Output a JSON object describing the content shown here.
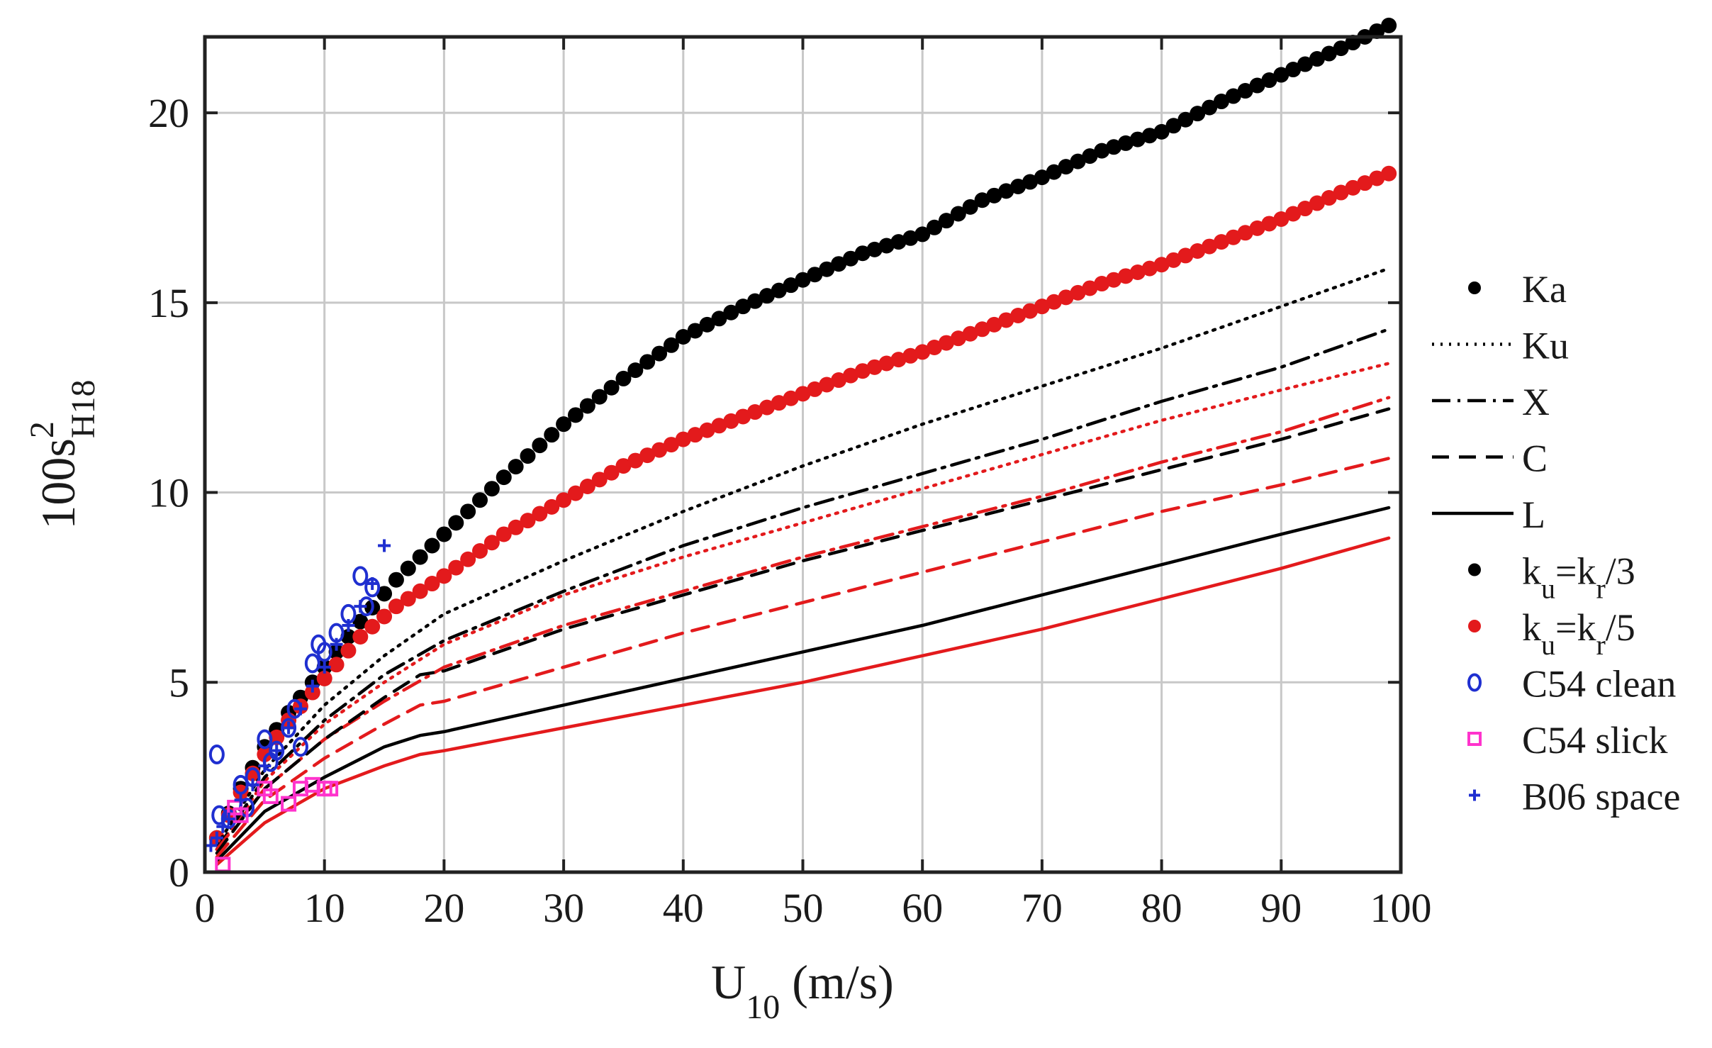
{
  "chart_data": {
    "type": "line",
    "xlabel": "U10 (m/s)",
    "xlabel_main": "U",
    "xlabel_sub": "10",
    "xlabel_unit": " (m/s)",
    "ylabel": "100s2H18",
    "ylabel_main": "100s",
    "ylabel_sup": "2",
    "ylabel_sub": "H18",
    "xlim": [
      0,
      100
    ],
    "ylim": [
      0,
      22
    ],
    "xticks": [
      0,
      10,
      20,
      30,
      40,
      50,
      60,
      70,
      80,
      90,
      100
    ],
    "yticks": [
      0,
      5,
      10,
      15,
      20
    ],
    "grid": true,
    "legend_position": "right-outside",
    "colors": {
      "ku_r3": "#000000",
      "ku_r5": "#e31a1c",
      "c54_clean": "#1f2fd0",
      "c54_slick": "#ff33cc",
      "b06": "#1f2fd0"
    },
    "legend": [
      {
        "label": "Ka",
        "style": "dots",
        "color": "#000000"
      },
      {
        "label": "Ku",
        "style": "dotted",
        "color": "#000000"
      },
      {
        "label": "X",
        "style": "dashdot",
        "color": "#000000"
      },
      {
        "label": "C",
        "style": "dashed",
        "color": "#000000"
      },
      {
        "label": "L",
        "style": "solid",
        "color": "#000000"
      },
      {
        "label": "ku=kr/3",
        "label_parts": [
          "k",
          "u",
          "=k",
          "r",
          "/3"
        ],
        "style": "marker-dot",
        "color": "#000000"
      },
      {
        "label": "ku=kr/5",
        "label_parts": [
          "k",
          "u",
          "=k",
          "r",
          "/5"
        ],
        "style": "marker-dot",
        "color": "#e31a1c"
      },
      {
        "label": "C54 clean",
        "style": "marker-diamond",
        "color": "#1f2fd0"
      },
      {
        "label": "C54 slick",
        "style": "marker-square",
        "color": "#ff33cc"
      },
      {
        "label": "B06 space",
        "style": "marker-plus",
        "color": "#1f2fd0"
      }
    ],
    "series": [
      {
        "name": "Ka, ku=kr/3",
        "band": "Ka",
        "color": "#000000",
        "style": "dots",
        "x": [
          1,
          3,
          5,
          7,
          10,
          13,
          16,
          20,
          25,
          30,
          35,
          40,
          45,
          50,
          55,
          60,
          65,
          70,
          75,
          80,
          85,
          90,
          95,
          99
        ],
        "y": [
          0.9,
          2.2,
          3.3,
          4.2,
          5.4,
          6.6,
          7.7,
          8.9,
          10.4,
          11.8,
          13.0,
          14.1,
          14.9,
          15.6,
          16.3,
          16.8,
          17.7,
          18.3,
          19.0,
          19.5,
          20.3,
          21.0,
          21.7,
          22.3
        ]
      },
      {
        "name": "Ka, ku=kr/5",
        "band": "Ka",
        "color": "#e31a1c",
        "style": "dots",
        "x": [
          1,
          3,
          5,
          7,
          10,
          13,
          16,
          20,
          25,
          30,
          35,
          40,
          45,
          50,
          55,
          60,
          65,
          70,
          75,
          80,
          85,
          90,
          95,
          99
        ],
        "y": [
          0.9,
          2.1,
          3.1,
          4.0,
          5.1,
          6.2,
          7.0,
          7.8,
          8.9,
          9.8,
          10.7,
          11.4,
          12.0,
          12.6,
          13.2,
          13.7,
          14.3,
          14.9,
          15.5,
          16.0,
          16.6,
          17.2,
          17.9,
          18.4
        ]
      },
      {
        "name": "Ku, ku=kr/3",
        "band": "Ku",
        "color": "#000000",
        "style": "dotted",
        "x": [
          1,
          5,
          10,
          15,
          20,
          30,
          40,
          50,
          60,
          70,
          80,
          90,
          99
        ],
        "y": [
          0.7,
          2.7,
          4.4,
          5.7,
          6.8,
          8.2,
          9.5,
          10.7,
          11.8,
          12.8,
          13.8,
          14.9,
          15.9
        ]
      },
      {
        "name": "Ku, ku=kr/5",
        "band": "Ku",
        "color": "#e31a1c",
        "style": "dotted",
        "x": [
          1,
          5,
          10,
          15,
          20,
          30,
          40,
          50,
          60,
          70,
          80,
          90,
          99
        ],
        "y": [
          0.6,
          2.4,
          3.9,
          5.0,
          6.0,
          7.3,
          8.3,
          9.2,
          10.1,
          11.0,
          11.9,
          12.7,
          13.4
        ]
      },
      {
        "name": "X, ku=kr/3",
        "band": "X",
        "color": "#000000",
        "style": "dashdot",
        "x": [
          1,
          5,
          10,
          15,
          20,
          30,
          40,
          50,
          60,
          70,
          80,
          90,
          99
        ],
        "y": [
          0.6,
          2.5,
          4.0,
          5.2,
          6.1,
          7.4,
          8.6,
          9.6,
          10.5,
          11.4,
          12.4,
          13.3,
          14.3
        ]
      },
      {
        "name": "X, ku=kr/5",
        "band": "X",
        "color": "#e31a1c",
        "style": "dashdot",
        "x": [
          1,
          5,
          10,
          15,
          20,
          30,
          40,
          50,
          60,
          70,
          80,
          90,
          99
        ],
        "y": [
          0.6,
          2.2,
          3.5,
          4.5,
          5.4,
          6.5,
          7.4,
          8.3,
          9.1,
          9.9,
          10.8,
          11.6,
          12.5
        ]
      },
      {
        "name": "C, ku=kr/3",
        "band": "C",
        "color": "#000000",
        "style": "dashed",
        "x": [
          1,
          5,
          10,
          15,
          18,
          20,
          30,
          40,
          50,
          60,
          70,
          80,
          90,
          99
        ],
        "y": [
          0.5,
          2.2,
          3.5,
          4.6,
          5.2,
          5.3,
          6.4,
          7.3,
          8.2,
          9.0,
          9.8,
          10.6,
          11.4,
          12.2
        ]
      },
      {
        "name": "C, ku=kr/5",
        "band": "C",
        "color": "#e31a1c",
        "style": "dashed",
        "x": [
          1,
          5,
          10,
          15,
          18,
          20,
          30,
          40,
          50,
          60,
          70,
          80,
          90,
          99
        ],
        "y": [
          0.4,
          1.9,
          3.0,
          3.9,
          4.4,
          4.5,
          5.4,
          6.3,
          7.1,
          7.9,
          8.7,
          9.5,
          10.2,
          10.9
        ]
      },
      {
        "name": "L, ku=kr/3",
        "band": "L",
        "color": "#000000",
        "style": "solid",
        "x": [
          1,
          5,
          10,
          15,
          18,
          20,
          30,
          40,
          50,
          60,
          70,
          80,
          90,
          99
        ],
        "y": [
          0.3,
          1.6,
          2.5,
          3.3,
          3.6,
          3.7,
          4.4,
          5.1,
          5.8,
          6.5,
          7.3,
          8.1,
          8.9,
          9.6
        ]
      },
      {
        "name": "L, ku=kr/5",
        "band": "L",
        "color": "#e31a1c",
        "style": "solid",
        "x": [
          1,
          5,
          10,
          15,
          18,
          20,
          30,
          40,
          50,
          60,
          70,
          80,
          90,
          99
        ],
        "y": [
          0.2,
          1.3,
          2.2,
          2.8,
          3.1,
          3.2,
          3.8,
          4.4,
          5.0,
          5.7,
          6.4,
          7.2,
          8.0,
          8.8
        ]
      },
      {
        "name": "C54 clean",
        "color": "#1f2fd0",
        "style": "marker-diamond",
        "x": [
          1.0,
          1.2,
          2.0,
          3.0,
          3.5,
          4.0,
          5.0,
          5.5,
          6.0,
          7.0,
          7.5,
          8.0,
          9.0,
          9.5,
          10.0,
          11.0,
          12.0,
          13.0,
          13.5,
          14.0
        ],
        "y": [
          3.1,
          1.5,
          1.4,
          2.3,
          1.7,
          2.5,
          3.5,
          2.9,
          3.2,
          3.8,
          4.3,
          3.3,
          5.5,
          6.0,
          5.8,
          6.3,
          6.8,
          7.8,
          7.0,
          7.5
        ]
      },
      {
        "name": "C54 slick",
        "color": "#ff33cc",
        "style": "marker-square",
        "x": [
          1.5,
          2.5,
          3.0,
          5.0,
          5.5,
          7.0,
          8.0,
          9.0,
          10.0,
          10.5
        ],
        "y": [
          0.2,
          1.7,
          1.5,
          2.2,
          2.0,
          1.8,
          2.2,
          2.3,
          2.2,
          2.2
        ]
      },
      {
        "name": "B06 space",
        "color": "#1f2fd0",
        "style": "marker-plus",
        "x": [
          0.5,
          1.0,
          1.5,
          2.0,
          3.0,
          4.0,
          5.0,
          6.0,
          7.0,
          8.0,
          9.0,
          10.0,
          11.0,
          12.0,
          13.0,
          14.0,
          15.0
        ],
        "y": [
          0.7,
          0.9,
          1.2,
          1.4,
          1.9,
          2.3,
          2.8,
          3.2,
          3.8,
          4.3,
          4.9,
          5.4,
          6.0,
          6.5,
          7.0,
          7.6,
          8.6
        ]
      }
    ]
  }
}
